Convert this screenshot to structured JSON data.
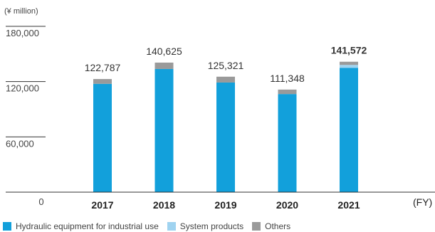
{
  "chart_data": {
    "type": "bar",
    "stacked": true,
    "unit_label": "(¥ million)",
    "x_unit_label": "(FY)",
    "categories": [
      "2017",
      "2018",
      "2019",
      "2020",
      "2021"
    ],
    "highlight_category": "2021",
    "series": [
      {
        "name": "Hydraulic equipment for industrial use",
        "color": "#12A0DB",
        "values": [
          117600,
          133700,
          119000,
          106500,
          135000
        ]
      },
      {
        "name": "System products",
        "color": "#9FD3F0",
        "values": [
          0,
          0,
          0,
          0,
          3100
        ]
      },
      {
        "name": "Others",
        "color": "#9A9A9A",
        "values": [
          5187,
          6925,
          6321,
          4848,
          3472
        ]
      }
    ],
    "totals": [
      "122,787",
      "140,625",
      "125,321",
      "111,348",
      "141,572"
    ],
    "y_ticks": [
      "0",
      "60,000",
      "120,000",
      "180,000"
    ],
    "ylim": [
      0,
      180000
    ],
    "legend_position": "bottom-left"
  }
}
